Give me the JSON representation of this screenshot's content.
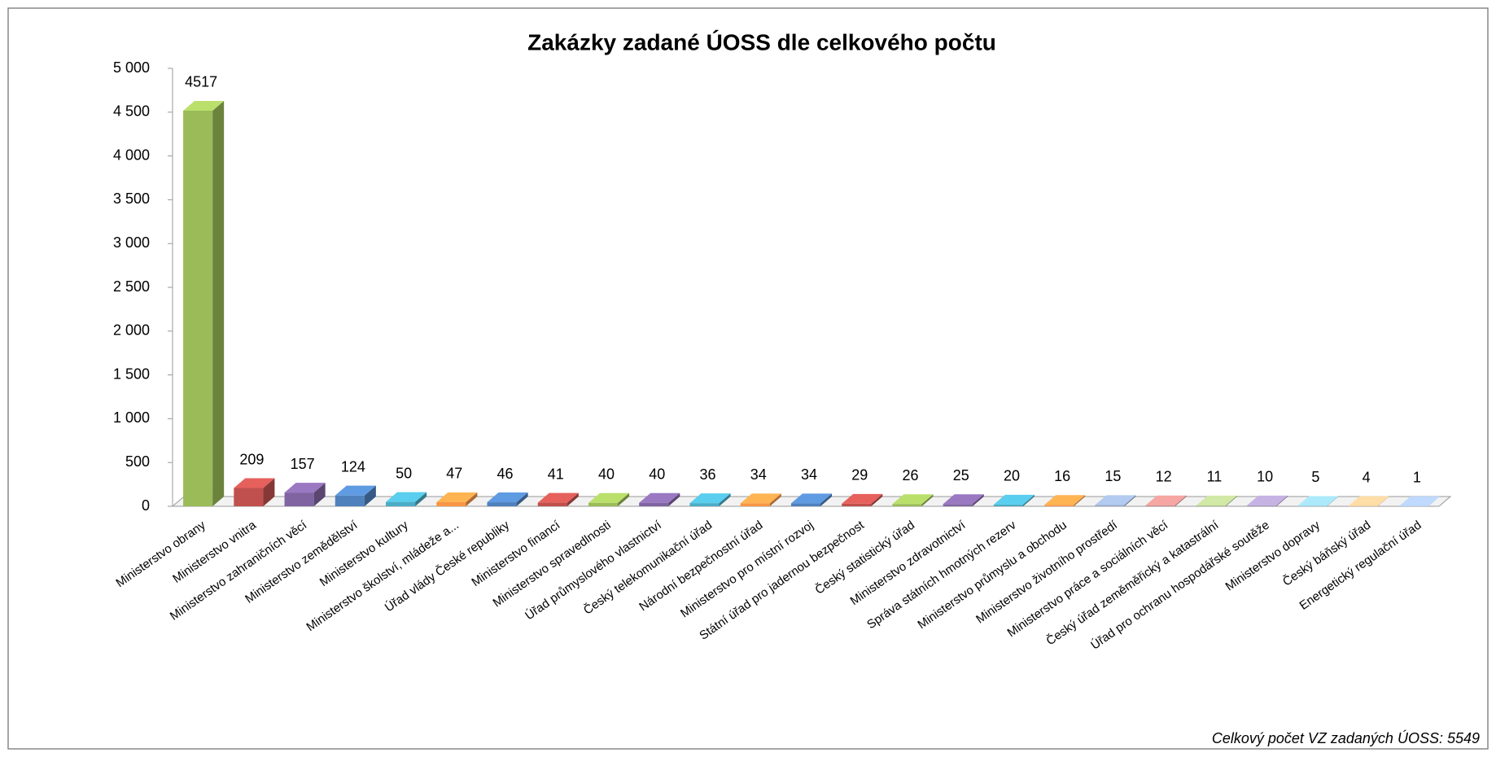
{
  "chart_data": {
    "type": "bar3d",
    "title": "Zakázky zadané ÚOSS dle celkového počtu",
    "annotation": "Celkový počet VZ zadaných ÚOSS: 5549",
    "categories": [
      "Ministerstvo obrany",
      "Ministerstvo vnitra",
      "Ministerstvo zahraničních věcí",
      "Ministerstvo zemědělství",
      "Ministerstvo kultury",
      "Ministerstvo školství, mládeže a...",
      "Úřad vlády České republiky",
      "Ministerstvo financí",
      "Ministerstvo spravedlnosti",
      "Úřad průmyslového vlastnictví",
      "Český telekomunikační úřad",
      "Národní bezpečnostní úřad",
      "Ministerstvo pro místní rozvoj",
      "Státní úřad pro jadernou bezpečnost",
      "Český statistický úřad",
      "Ministerstvo zdravotnictví",
      "Správa státních hmotných rezerv",
      "Ministerstvo průmyslu a obchodu",
      "Ministerstvo životního prostředí",
      "Ministerstvo práce a sociálních věcí",
      "Český úřad zeměměřický a katastrální",
      "Úřad pro ochranu hospodářské soutěže",
      "Ministerstvo dopravy",
      "Český báňský úřad",
      "Energetický regulační úřad"
    ],
    "values": [
      4517,
      209,
      157,
      124,
      50,
      47,
      46,
      41,
      40,
      40,
      36,
      34,
      34,
      29,
      26,
      25,
      20,
      16,
      15,
      12,
      11,
      10,
      5,
      4,
      1
    ],
    "colors": [
      "#9bbb59",
      "#c0504d",
      "#8064a2",
      "#4f81bd",
      "#4bacc6",
      "#f79646",
      "#4f81bd",
      "#c0504d",
      "#9bbb59",
      "#8064a2",
      "#4bacc6",
      "#f79646",
      "#4f81bd",
      "#c0504d",
      "#9bbb59",
      "#8064a2",
      "#4bacc6",
      "#f79646",
      "#95a8c9",
      "#cd8a88",
      "#aec18a",
      "#a594bd",
      "#8fc3d1",
      "#f3b88a",
      "#9fb5d6"
    ],
    "ylim": [
      0,
      5000
    ],
    "yticks": [
      0,
      500,
      {
        "value": 1000,
        "label": "1 000"
      },
      {
        "value": 1500,
        "label": "1 500"
      },
      {
        "value": 2000,
        "label": "2 000"
      },
      {
        "value": 2500,
        "label": "2 500"
      },
      {
        "value": 3000,
        "label": "3 000"
      },
      {
        "value": 3500,
        "label": "3 500"
      },
      {
        "value": 4000,
        "label": "4 000"
      },
      {
        "value": 4500,
        "label": "4 500"
      },
      {
        "value": 5000,
        "label": "5 000"
      }
    ],
    "grid": false
  }
}
